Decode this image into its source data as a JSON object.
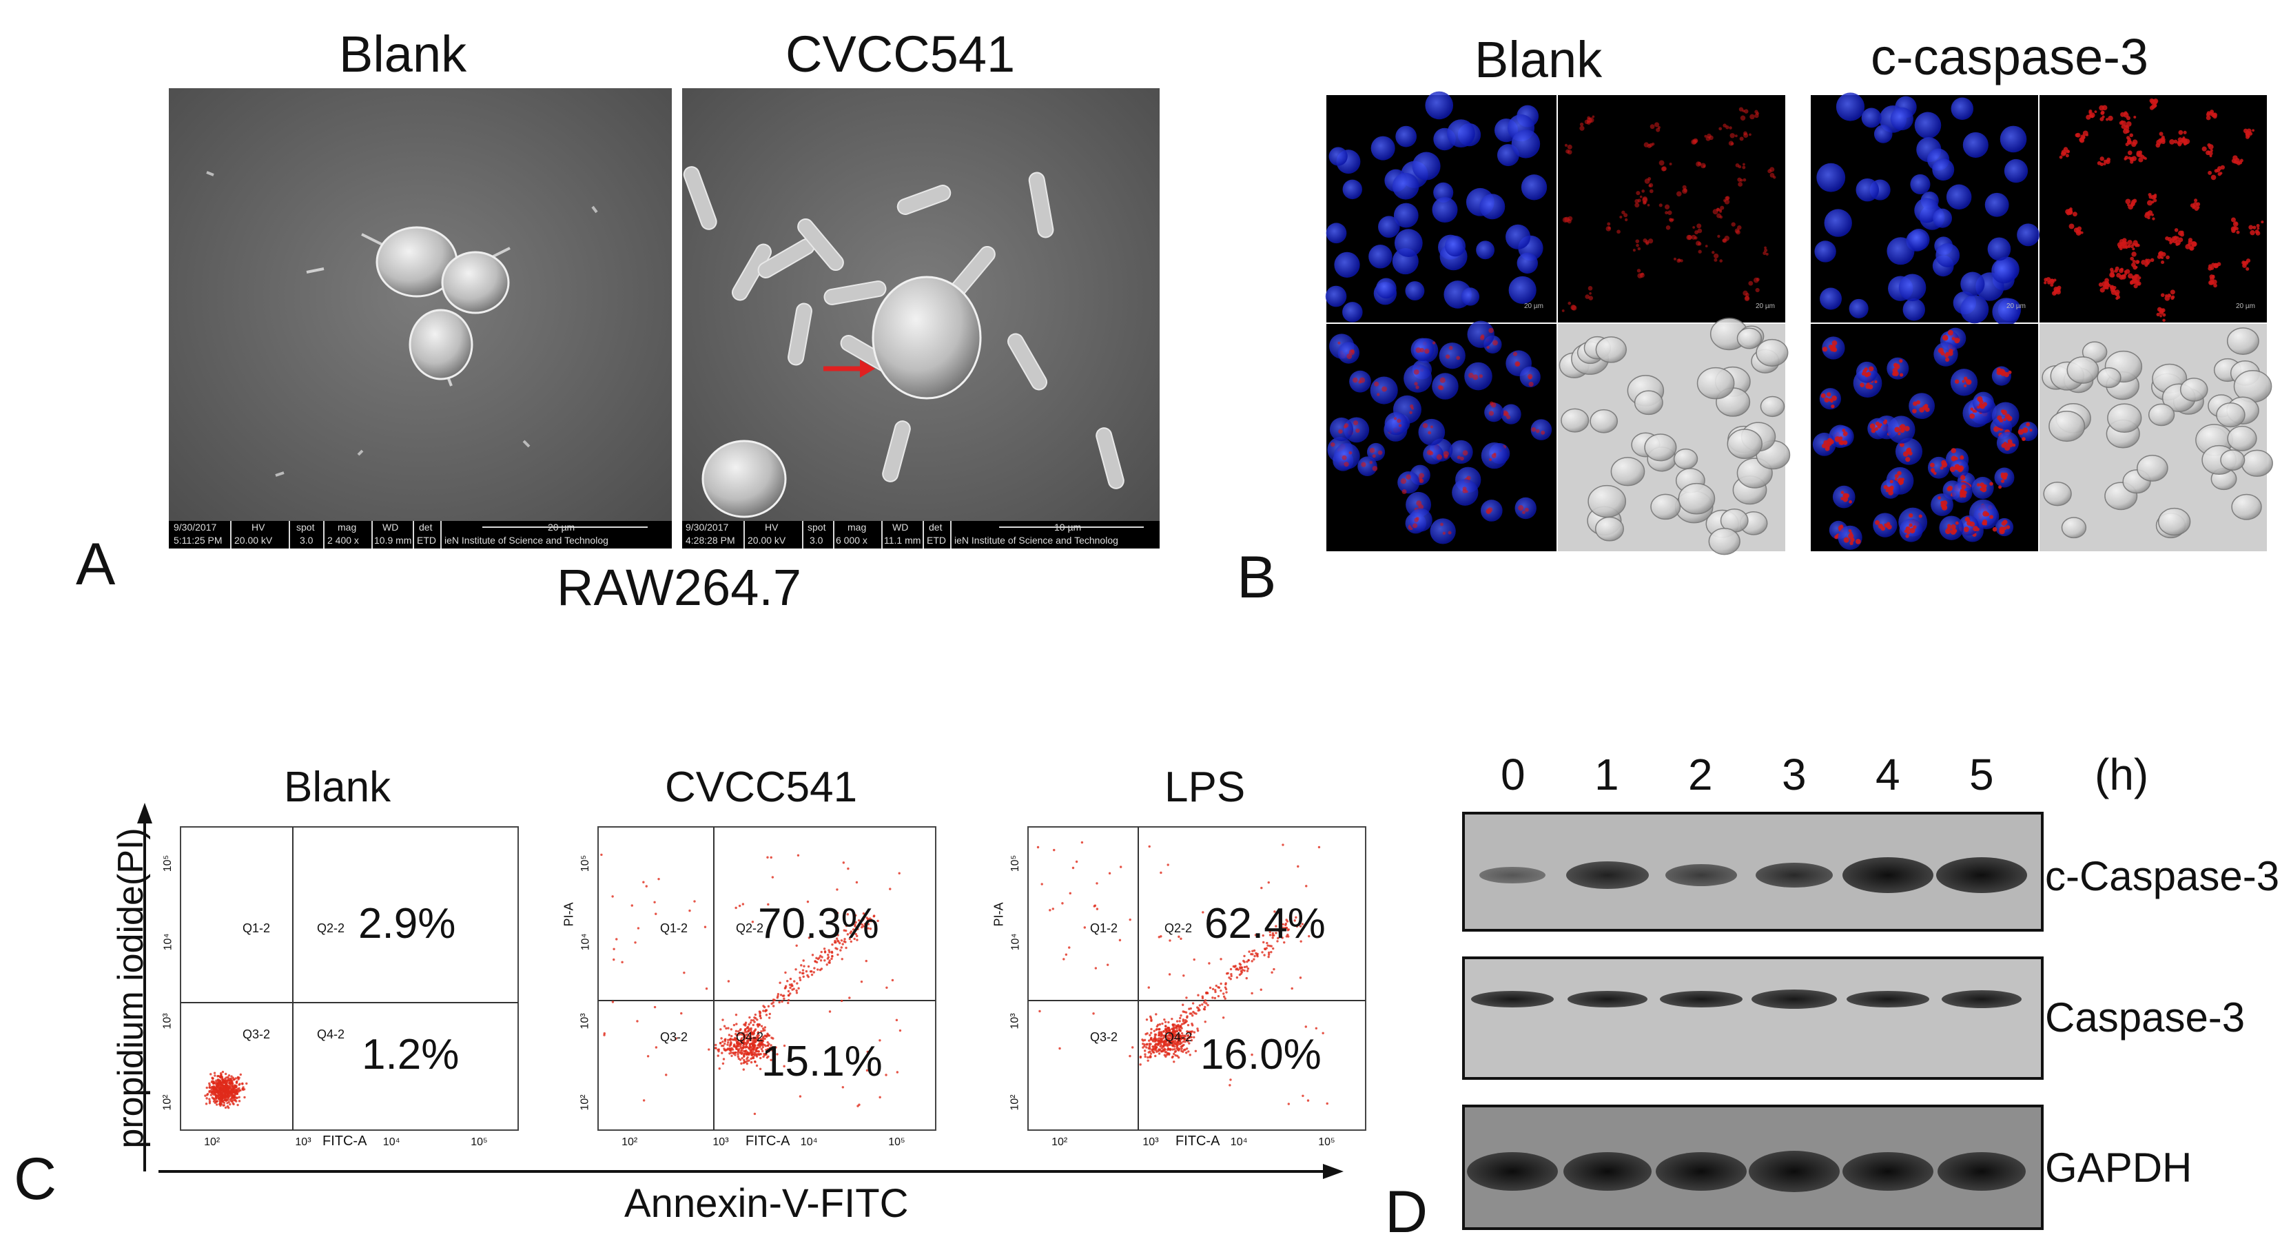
{
  "panel_letters": {
    "a": "A",
    "b": "B",
    "c": "C",
    "d": "D"
  },
  "panel_a": {
    "titles": [
      "Blank",
      "CVCC541"
    ],
    "cell_line": "RAW264.7",
    "sem_info": [
      {
        "headers": [
          "HV",
          "spot",
          "mag",
          "WD",
          "det"
        ],
        "values": [
          "20.00 kV",
          "3.0",
          "2 400 x",
          "10.9 mm",
          "ETD"
        ],
        "date": "9/30/2017",
        "time": "5:11:25 PM",
        "scale": "20 µm",
        "institute": "ieN Institute of Science and Technolog"
      },
      {
        "headers": [
          "HV",
          "spot",
          "mag",
          "WD",
          "det"
        ],
        "values": [
          "20.00 kV",
          "3.0",
          "6 000 x",
          "11.1 mm",
          "ETD"
        ],
        "date": "9/30/2017",
        "time": "4:28:28 PM",
        "scale": "10 µm",
        "institute": "ieN Institute of Science and Technolog"
      }
    ]
  },
  "panel_b": {
    "titles": [
      "Blank",
      "c-caspase-3"
    ],
    "scale_labels": [
      "20 µm",
      "20 µm",
      "20 µm",
      "20 µm"
    ]
  },
  "panel_c": {
    "x_axis_label": "Annexin-V-FITC",
    "y_axis_label": "propidium iodide(PI)",
    "plots": [
      {
        "title": "Blank",
        "upper_right": "2.9%",
        "lower_right": "1.2%",
        "y_axis_title": "",
        "x_axis_title": "FITC-A",
        "quadrants": [
          "Q1-2",
          "Q2-2",
          "Q3-2",
          "Q4-2"
        ]
      },
      {
        "title": "CVCC541",
        "upper_right": "70.3%",
        "lower_right": "15.1%",
        "y_axis_title": "PI-A",
        "x_axis_title": "FITC-A",
        "quadrants": [
          "Q1-2",
          "Q2-2",
          "Q3-2",
          "Q4-2"
        ]
      },
      {
        "title": "LPS",
        "upper_right": "62.4%",
        "lower_right": "16.0%",
        "y_axis_title": "PI-A",
        "x_axis_title": "FITC-A",
        "quadrants": [
          "Q1-2",
          "Q2-2",
          "Q3-2",
          "Q4-2"
        ]
      }
    ],
    "tick_labels": [
      "10²",
      "10³",
      "10⁴",
      "10⁵"
    ]
  },
  "panel_d": {
    "hours": [
      "0",
      "1",
      "2",
      "3",
      "4",
      "5"
    ],
    "unit": "(h)",
    "blots": [
      "c-Caspase-3",
      "Caspase-3",
      "GAPDH"
    ]
  },
  "colors": {
    "dot": "#e02a1a",
    "arrow": "#e02020",
    "nucleus": "#1a2cff",
    "caspase": "#d01818"
  }
}
